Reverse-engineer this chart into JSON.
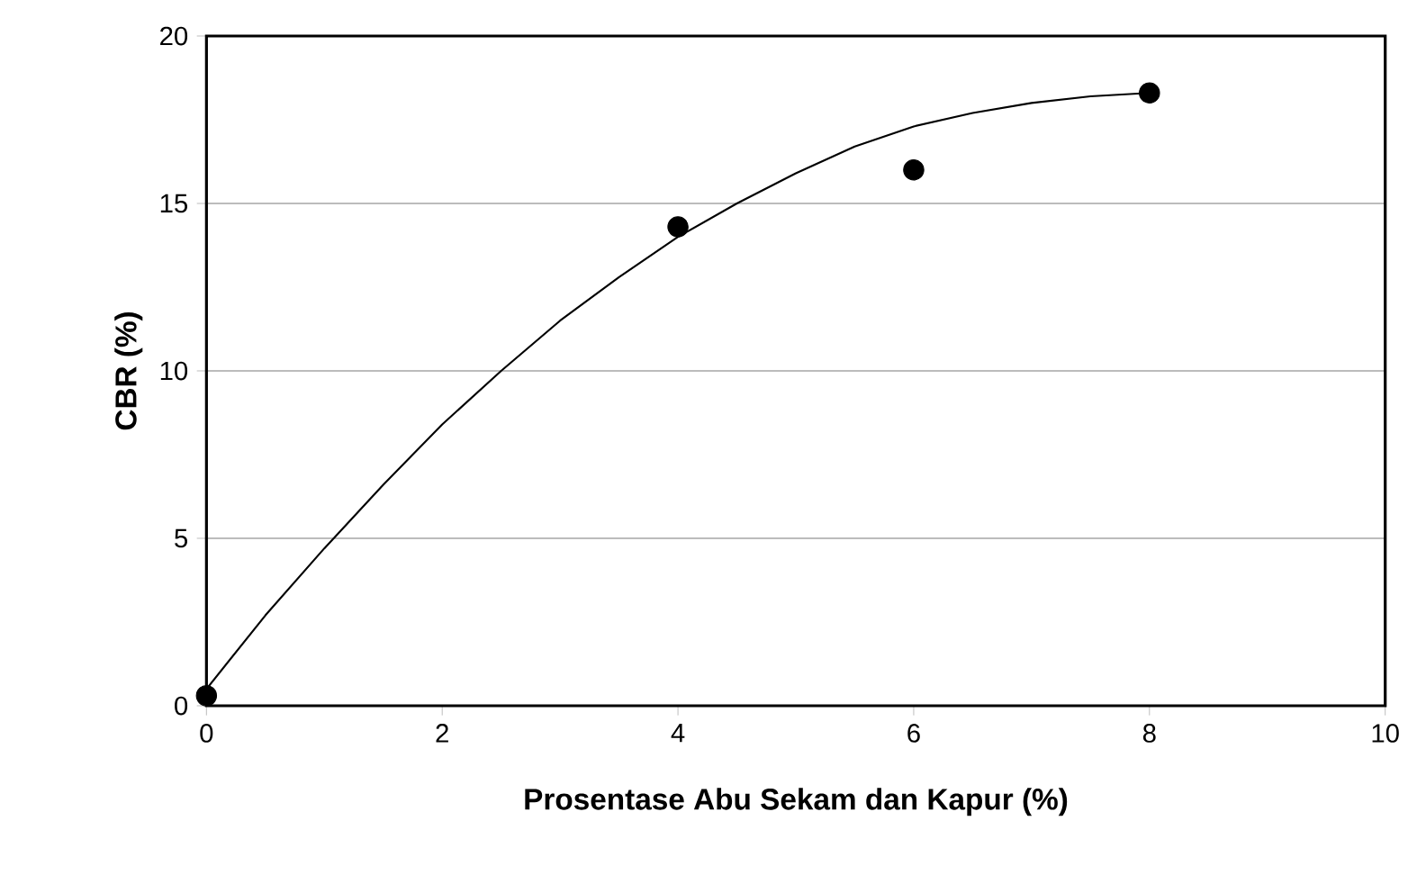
{
  "chart_data": {
    "type": "scatter",
    "xlabel": "Prosentase Abu Sekam dan Kapur (%)",
    "ylabel": "CBR (%)",
    "xlim": [
      0,
      10
    ],
    "ylim": [
      0,
      20
    ],
    "xticks": [
      0,
      2,
      4,
      6,
      8,
      10
    ],
    "yticks": [
      0,
      5,
      10,
      15,
      20
    ],
    "grid": "y",
    "series": [
      {
        "color": "#000000",
        "marker": "circle",
        "x": [
          0,
          4,
          6,
          8
        ],
        "values": [
          0.3,
          14.3,
          16.0,
          18.3
        ]
      },
      {
        "type": "line",
        "color": "#000000",
        "marker": "none",
        "line_style": "solid",
        "x": [
          0,
          0.5,
          1,
          1.5,
          2,
          2.5,
          3,
          3.5,
          4,
          4.5,
          5,
          5.5,
          6,
          6.5,
          7,
          7.5,
          8
        ],
        "values": [
          0.5,
          2.7,
          4.7,
          6.6,
          8.4,
          10.0,
          11.5,
          12.8,
          14.0,
          15.0,
          15.9,
          16.7,
          17.3,
          17.7,
          18.0,
          18.2,
          18.3
        ]
      }
    ]
  }
}
